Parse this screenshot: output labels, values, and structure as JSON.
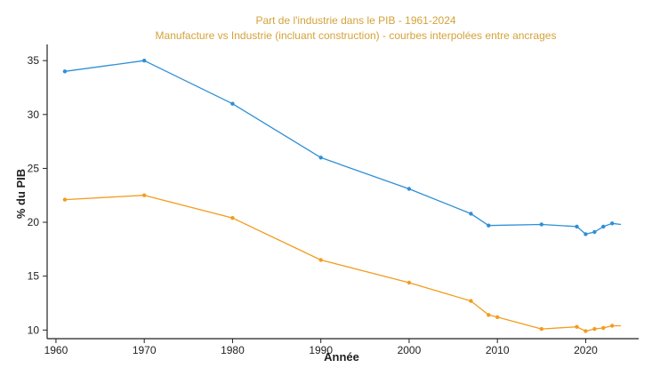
{
  "chart_data": {
    "type": "line",
    "title": "Part de l'industrie dans le PIB - 1961-2024",
    "subtitle": "Manufacture vs Industrie (incluant construction) - courbes interpolées entre ancrages",
    "xlabel": "Année",
    "ylabel": "% du PIB",
    "xlim": [
      1959,
      2026
    ],
    "ylim": [
      9.2,
      36.5
    ],
    "xticks": [
      1960,
      1970,
      1980,
      1990,
      2000,
      2010,
      2020
    ],
    "yticks": [
      10,
      15,
      20,
      25,
      30,
      35
    ],
    "grid": false,
    "series": [
      {
        "name": "Industrie (incluant construction)",
        "color": "#2e8fd6",
        "x": [
          1961,
          1970,
          1980,
          1990,
          2000,
          2007,
          2009,
          2015,
          2019,
          2020,
          2021,
          2022,
          2023,
          2024
        ],
        "y": [
          34.0,
          35.0,
          31.0,
          26.0,
          23.1,
          20.8,
          19.7,
          19.8,
          19.6,
          18.9,
          19.1,
          19.6,
          19.9,
          19.8
        ],
        "markers": [
          true,
          true,
          true,
          true,
          true,
          true,
          true,
          true,
          true,
          true,
          true,
          true,
          true,
          false
        ]
      },
      {
        "name": "Manufacture",
        "color": "#f39c1e",
        "x": [
          1961,
          1970,
          1980,
          1990,
          2000,
          2007,
          2009,
          2010,
          2015,
          2019,
          2020,
          2021,
          2022,
          2023,
          2024
        ],
        "y": [
          22.1,
          22.5,
          20.4,
          16.5,
          14.4,
          12.7,
          11.4,
          11.2,
          10.1,
          10.3,
          9.9,
          10.1,
          10.2,
          10.4,
          10.4
        ],
        "markers": [
          true,
          true,
          true,
          true,
          true,
          true,
          true,
          true,
          true,
          true,
          true,
          true,
          true,
          true,
          false
        ]
      }
    ]
  }
}
